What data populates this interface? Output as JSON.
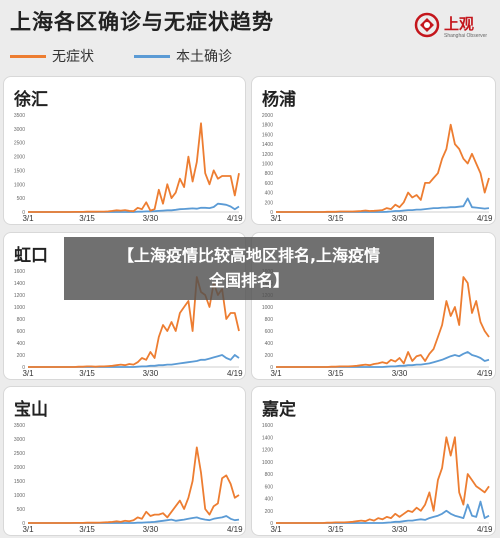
{
  "header": {
    "title": "上海各区确诊与无症状趋势",
    "legend": [
      {
        "label": "无症状",
        "color": "#ed7d31"
      },
      {
        "label": "本土确诊",
        "color": "#5b9bd5"
      }
    ],
    "logo_text": "上观",
    "logo_sub": "Shanghai Observer",
    "logo_color": "#c4161c"
  },
  "overlay": {
    "line1": "【上海疫情比较高地区排名,上海疫情",
    "line2": "全国排名】"
  },
  "chart_data": [
    {
      "type": "line",
      "title": "徐汇",
      "x_ticks": [
        "3/1",
        "3/15",
        "3/30",
        "4/19"
      ],
      "ylim": [
        0,
        3500
      ],
      "y_ticks": [
        0,
        500,
        1000,
        1500,
        2000,
        2500,
        3000,
        3500
      ],
      "series": [
        {
          "name": "无症状",
          "color": "#ed7d31",
          "values": [
            0,
            0,
            0,
            0,
            0,
            0,
            0,
            0,
            0,
            0,
            0,
            5,
            5,
            5,
            10,
            10,
            10,
            15,
            15,
            20,
            40,
            60,
            50,
            70,
            40,
            30,
            150,
            100,
            350,
            50,
            100,
            800,
            300,
            1000,
            500,
            700,
            1200,
            900,
            2000,
            1100,
            1800,
            3200,
            1400,
            1000,
            1500,
            1200,
            1300,
            1300,
            1300,
            600,
            1400
          ]
        },
        {
          "name": "本土确诊",
          "color": "#5b9bd5",
          "values": [
            0,
            0,
            0,
            0,
            0,
            0,
            0,
            0,
            0,
            0,
            0,
            0,
            0,
            0,
            0,
            0,
            0,
            0,
            0,
            0,
            0,
            0,
            0,
            0,
            0,
            0,
            10,
            10,
            20,
            20,
            30,
            40,
            50,
            60,
            60,
            80,
            100,
            110,
            120,
            130,
            120,
            150,
            150,
            140,
            180,
            300,
            280,
            260,
            200,
            100,
            200
          ]
        }
      ]
    },
    {
      "type": "line",
      "title": "杨浦",
      "x_ticks": [
        "3/1",
        "3/15",
        "3/30",
        "4/19"
      ],
      "ylim": [
        0,
        2000
      ],
      "y_ticks": [
        0,
        200,
        400,
        600,
        800,
        1000,
        1200,
        1400,
        1600,
        1800,
        2000
      ],
      "series": [
        {
          "name": "无症状",
          "color": "#ed7d31",
          "values": [
            0,
            0,
            0,
            0,
            0,
            0,
            0,
            0,
            0,
            0,
            0,
            0,
            5,
            5,
            5,
            10,
            10,
            10,
            10,
            15,
            20,
            30,
            20,
            25,
            30,
            40,
            80,
            60,
            150,
            100,
            200,
            400,
            300,
            350,
            250,
            600,
            600,
            700,
            800,
            1100,
            1300,
            1800,
            1400,
            1300,
            1100,
            1000,
            1200,
            1000,
            800,
            400,
            700
          ]
        },
        {
          "name": "本土确诊",
          "color": "#5b9bd5",
          "values": [
            0,
            0,
            0,
            0,
            0,
            0,
            0,
            0,
            0,
            0,
            0,
            0,
            0,
            0,
            0,
            0,
            0,
            0,
            0,
            0,
            0,
            0,
            0,
            0,
            0,
            0,
            5,
            10,
            20,
            20,
            30,
            40,
            40,
            50,
            50,
            60,
            70,
            80,
            80,
            90,
            90,
            100,
            100,
            110,
            120,
            280,
            100,
            90,
            80,
            70,
            80
          ]
        }
      ]
    },
    {
      "type": "line",
      "title": "虹口",
      "x_ticks": [
        "3/1",
        "3/15",
        "3/30",
        "4/19"
      ],
      "ylim": [
        0,
        1600
      ],
      "y_ticks": [
        0,
        200,
        400,
        600,
        800,
        1000,
        1200,
        1400,
        1600
      ],
      "series": [
        {
          "name": "无症状",
          "color": "#ed7d31",
          "values": [
            0,
            0,
            0,
            0,
            0,
            0,
            0,
            0,
            0,
            0,
            0,
            0,
            5,
            5,
            10,
            10,
            5,
            10,
            10,
            15,
            20,
            30,
            40,
            30,
            50,
            40,
            80,
            150,
            120,
            250,
            150,
            500,
            700,
            600,
            750,
            600,
            900,
            1000,
            1100,
            600,
            1500,
            1250,
            1200,
            1000,
            1400,
            1200,
            1300,
            800,
            900,
            900,
            600
          ]
        },
        {
          "name": "本土确诊",
          "color": "#5b9bd5",
          "values": [
            0,
            0,
            0,
            0,
            0,
            0,
            0,
            0,
            0,
            0,
            0,
            0,
            0,
            0,
            0,
            0,
            0,
            0,
            0,
            0,
            0,
            0,
            0,
            0,
            0,
            0,
            5,
            10,
            10,
            20,
            20,
            30,
            30,
            40,
            40,
            50,
            60,
            70,
            80,
            90,
            100,
            120,
            120,
            140,
            160,
            180,
            200,
            150,
            120,
            200,
            150
          ]
        }
      ]
    },
    {
      "type": "line",
      "title": "",
      "x_ticks": [
        "3/1",
        "3/15",
        "3/30",
        "4/19"
      ],
      "ylim": [
        0,
        1600
      ],
      "y_ticks": [
        0,
        200,
        400,
        600,
        800,
        1000,
        1200,
        1400,
        1600
      ],
      "series": [
        {
          "name": "无症状",
          "color": "#ed7d31",
          "values": [
            0,
            0,
            0,
            0,
            0,
            0,
            0,
            0,
            0,
            0,
            0,
            0,
            0,
            5,
            5,
            10,
            10,
            10,
            15,
            20,
            30,
            40,
            30,
            50,
            60,
            80,
            60,
            120,
            90,
            150,
            60,
            250,
            100,
            180,
            200,
            100,
            220,
            300,
            500,
            700,
            1100,
            850,
            1000,
            700,
            1500,
            1400,
            900,
            1100,
            750,
            600,
            500
          ]
        },
        {
          "name": "本土确诊",
          "color": "#5b9bd5",
          "values": [
            0,
            0,
            0,
            0,
            0,
            0,
            0,
            0,
            0,
            0,
            0,
            0,
            0,
            0,
            0,
            0,
            0,
            0,
            0,
            0,
            0,
            0,
            0,
            0,
            0,
            0,
            5,
            10,
            10,
            20,
            20,
            30,
            30,
            40,
            40,
            50,
            60,
            80,
            100,
            120,
            150,
            180,
            200,
            180,
            220,
            250,
            200,
            180,
            150,
            100,
            120
          ]
        }
      ]
    },
    {
      "type": "line",
      "title": "宝山",
      "x_ticks": [
        "3/1",
        "3/15",
        "3/30",
        "4/19"
      ],
      "ylim": [
        0,
        3500
      ],
      "y_ticks": [
        0,
        500,
        1000,
        1500,
        2000,
        2500,
        3000,
        3500
      ],
      "series": [
        {
          "name": "无症状",
          "color": "#ed7d31",
          "values": [
            0,
            0,
            0,
            0,
            0,
            0,
            0,
            0,
            0,
            0,
            0,
            5,
            5,
            5,
            10,
            10,
            10,
            15,
            20,
            30,
            40,
            60,
            40,
            80,
            60,
            100,
            200,
            150,
            400,
            250,
            300,
            300,
            350,
            200,
            400,
            600,
            800,
            500,
            900,
            1500,
            2700,
            1800,
            500,
            300,
            600,
            700,
            1600,
            1700,
            1400,
            900,
            1000
          ]
        },
        {
          "name": "本土确诊",
          "color": "#5b9bd5",
          "values": [
            0,
            0,
            0,
            0,
            0,
            0,
            0,
            0,
            0,
            0,
            0,
            0,
            0,
            0,
            0,
            0,
            0,
            0,
            0,
            0,
            0,
            0,
            0,
            0,
            0,
            0,
            10,
            10,
            20,
            30,
            40,
            60,
            80,
            100,
            120,
            80,
            100,
            120,
            150,
            180,
            200,
            150,
            120,
            100,
            150,
            180,
            200,
            250,
            150,
            100,
            120
          ]
        }
      ]
    },
    {
      "type": "line",
      "title": "嘉定",
      "x_ticks": [
        "3/1",
        "3/15",
        "3/30",
        "4/19"
      ],
      "ylim": [
        0,
        1600
      ],
      "y_ticks": [
        0,
        200,
        400,
        600,
        800,
        1000,
        1200,
        1400,
        1600
      ],
      "series": [
        {
          "name": "无症状",
          "color": "#ed7d31",
          "values": [
            0,
            0,
            0,
            0,
            0,
            0,
            0,
            0,
            0,
            0,
            0,
            0,
            5,
            5,
            10,
            10,
            10,
            15,
            20,
            30,
            40,
            30,
            60,
            40,
            80,
            60,
            100,
            80,
            150,
            100,
            150,
            200,
            180,
            250,
            200,
            300,
            500,
            200,
            700,
            900,
            1400,
            1100,
            1400,
            500,
            300,
            800,
            700,
            600,
            550,
            500,
            600
          ]
        },
        {
          "name": "本土确诊",
          "color": "#5b9bd5",
          "values": [
            0,
            0,
            0,
            0,
            0,
            0,
            0,
            0,
            0,
            0,
            0,
            0,
            0,
            0,
            0,
            0,
            0,
            0,
            0,
            0,
            0,
            0,
            0,
            0,
            0,
            0,
            5,
            10,
            20,
            20,
            30,
            40,
            40,
            50,
            60,
            50,
            80,
            100,
            120,
            150,
            200,
            150,
            120,
            100,
            80,
            300,
            120,
            100,
            350,
            80,
            120
          ]
        }
      ]
    }
  ]
}
